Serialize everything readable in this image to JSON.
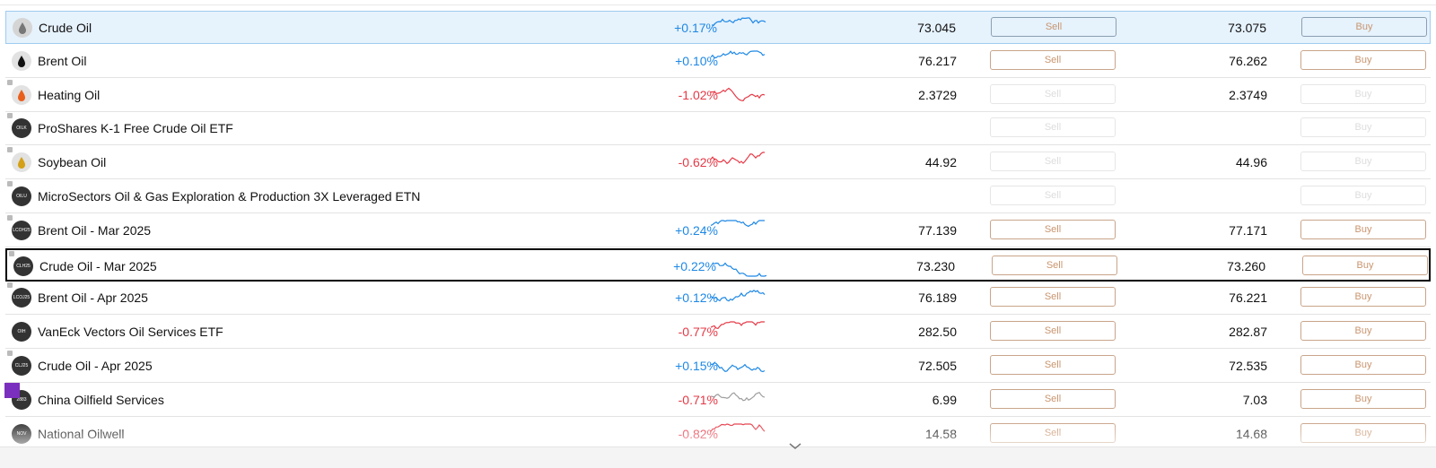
{
  "rows": [
    {
      "name": "Crude Oil",
      "change": "+0.17%",
      "sell": "73.045",
      "buy": "73.075",
      "sell_button": "Sell",
      "buy_button": "Buy",
      "spark_color": "#1e88e5",
      "icon_color": "#d5d5d5",
      "selected": true
    },
    {
      "name": "Brent Oil",
      "change": "+0.10%",
      "sell": "76.217",
      "buy": "76.262",
      "sell_button": "Sell",
      "buy_button": "Buy",
      "spark_color": "#1e88e5",
      "icon_color": "#e2e2e2"
    },
    {
      "name": "Heating Oil",
      "change": "-1.02%",
      "sell": "2.3729",
      "buy": "2.3749",
      "sell_button": "Sell",
      "buy_button": "Buy",
      "spark_color": "#e53946",
      "icon_color": "#e2e2e2",
      "locked": true,
      "disabled": true
    },
    {
      "name": "ProShares K-1 Free Crude Oil ETF",
      "icon_text": "OILK",
      "sell_button": "Sell",
      "buy_button": "Buy",
      "icon_color": "#333333",
      "locked": true,
      "disabled": true
    },
    {
      "name": "Soybean Oil",
      "change": "-0.62%",
      "sell": "44.92",
      "buy": "44.96",
      "sell_button": "Sell",
      "buy_button": "Buy",
      "spark_color": "#e53946",
      "icon_color": "#e2e2e2",
      "locked": true,
      "disabled": true
    },
    {
      "name": "MicroSectors Oil & Gas Exploration & Production 3X Leveraged ETN",
      "icon_text": "OILU",
      "sell_button": "Sell",
      "buy_button": "Buy",
      "icon_color": "#333333",
      "locked": true,
      "disabled": true
    },
    {
      "name": "Brent Oil - Mar 2025",
      "icon_text": "LCOH25",
      "change": "+0.24%",
      "sell": "77.139",
      "buy": "77.171",
      "sell_button": "Sell",
      "buy_button": "Buy",
      "spark_color": "#1e88e5",
      "icon_color": "#333333",
      "locked": true
    },
    {
      "name": "Crude Oil - Mar 2025",
      "icon_text": "CLH25",
      "change": "+0.22%",
      "sell": "73.230",
      "buy": "73.260",
      "sell_button": "Sell",
      "buy_button": "Buy",
      "spark_color": "#1e88e5",
      "icon_color": "#333333",
      "locked": true,
      "focused": true
    },
    {
      "name": "Brent Oil - Apr 2025",
      "icon_text": "LCOJ25",
      "change": "+0.12%",
      "sell": "76.189",
      "buy": "76.221",
      "sell_button": "Sell",
      "buy_button": "Buy",
      "spark_color": "#1e88e5",
      "icon_color": "#333333",
      "locked": true
    },
    {
      "name": "VanEck Vectors Oil Services ETF",
      "icon_text": "OIH",
      "change": "-0.77%",
      "sell": "282.50",
      "buy": "282.87",
      "sell_button": "Sell",
      "buy_button": "Buy",
      "spark_color": "#e53946",
      "icon_color": "#333333"
    },
    {
      "name": "Crude Oil - Apr 2025",
      "icon_text": "CLJ25",
      "change": "+0.15%",
      "sell": "72.505",
      "buy": "72.535",
      "sell_button": "Sell",
      "buy_button": "Buy",
      "spark_color": "#1e88e5",
      "icon_color": "#333333",
      "locked": true
    },
    {
      "name": "China Oilfield Services",
      "icon_text": "2883",
      "change": "-0.71%",
      "sell": "6.99",
      "buy": "7.03",
      "sell_button": "Sell",
      "buy_button": "Buy",
      "spark_color": "#9e9e9e",
      "icon_color": "#333333",
      "night": true
    },
    {
      "name": "National Oilwell",
      "icon_text": "NOV",
      "change": "-0.82%",
      "sell": "14.58",
      "buy": "14.68",
      "sell_button": "Sell",
      "buy_button": "Buy",
      "spark_color": "#e53946",
      "icon_color": "#333333"
    }
  ]
}
